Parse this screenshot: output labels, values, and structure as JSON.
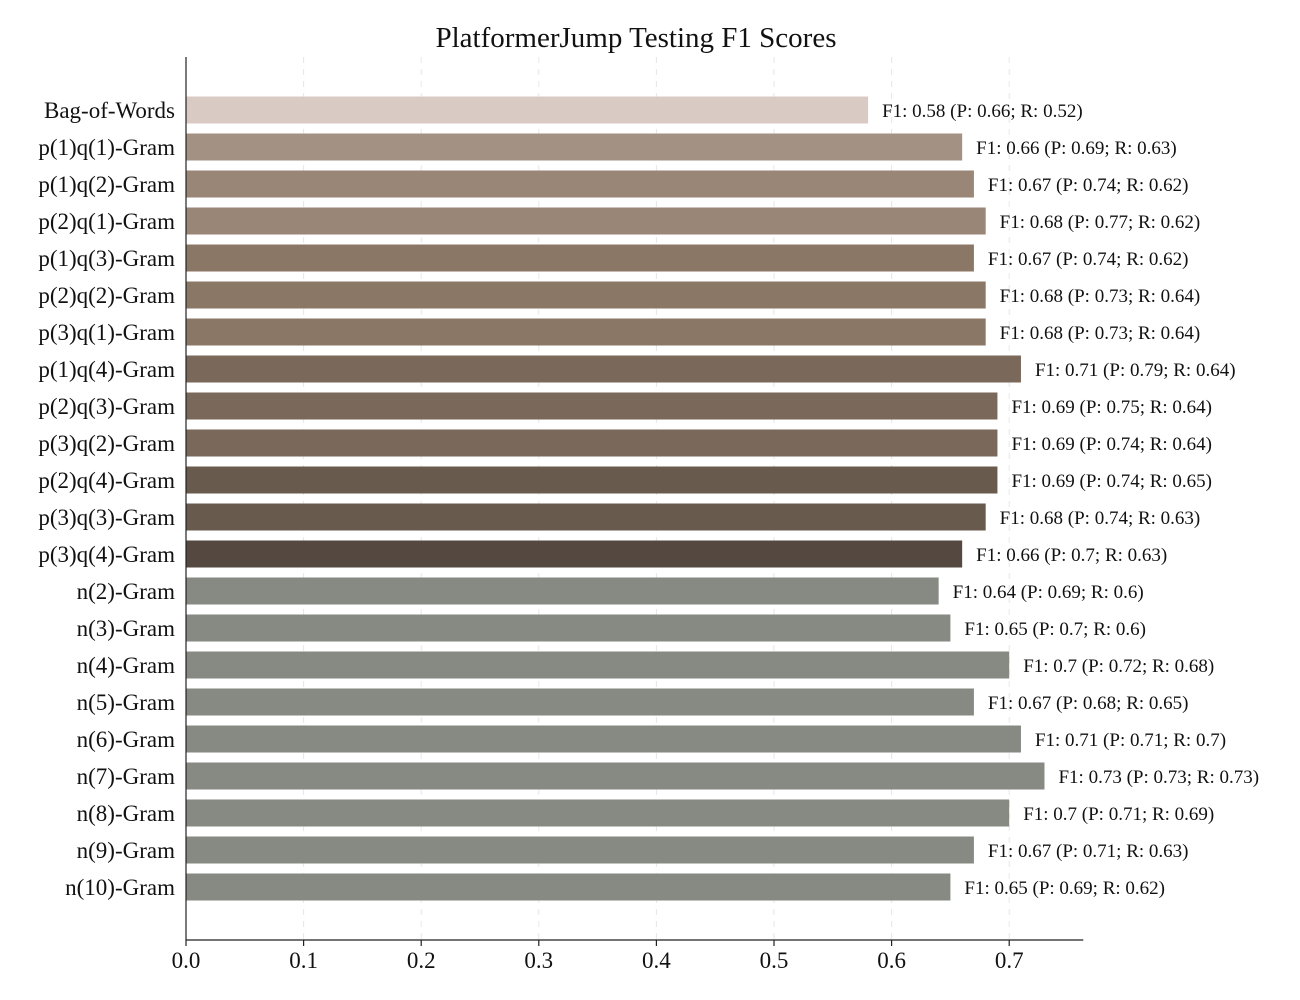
{
  "chart_data": {
    "type": "bar",
    "orientation": "horizontal",
    "title": "PlatformerJump Testing F1 Scores",
    "xlabel": "",
    "ylabel": "",
    "xlim": [
      0,
      0.763
    ],
    "xticks": [
      "0.0",
      "0.1",
      "0.2",
      "0.3",
      "0.4",
      "0.5",
      "0.6",
      "0.7"
    ],
    "grid": "vertical dashed",
    "categories": [
      "Bag-of-Words",
      "p(1)q(1)-Gram",
      "p(1)q(2)-Gram",
      "p(2)q(1)-Gram",
      "p(1)q(3)-Gram",
      "p(2)q(2)-Gram",
      "p(3)q(1)-Gram",
      "p(1)q(4)-Gram",
      "p(2)q(3)-Gram",
      "p(3)q(2)-Gram",
      "p(2)q(4)-Gram",
      "p(3)q(3)-Gram",
      "p(3)q(4)-Gram",
      "n(2)-Gram",
      "n(3)-Gram",
      "n(4)-Gram",
      "n(5)-Gram",
      "n(6)-Gram",
      "n(7)-Gram",
      "n(8)-Gram",
      "n(9)-Gram",
      "n(10)-Gram"
    ],
    "values": [
      0.58,
      0.66,
      0.67,
      0.68,
      0.67,
      0.68,
      0.68,
      0.71,
      0.69,
      0.69,
      0.69,
      0.68,
      0.66,
      0.64,
      0.65,
      0.7,
      0.67,
      0.71,
      0.73,
      0.7,
      0.67,
      0.65
    ],
    "bar_labels": [
      "F1: 0.58 (P: 0.66; R: 0.52)",
      "F1: 0.66 (P: 0.69; R: 0.63)",
      "F1: 0.67 (P: 0.74; R: 0.62)",
      "F1: 0.68 (P: 0.77; R: 0.62)",
      "F1: 0.67 (P: 0.74; R: 0.62)",
      "F1: 0.68 (P: 0.73; R: 0.64)",
      "F1: 0.68 (P: 0.73; R: 0.64)",
      "F1: 0.71 (P: 0.79; R: 0.64)",
      "F1: 0.69 (P: 0.75; R: 0.64)",
      "F1: 0.69 (P: 0.74; R: 0.64)",
      "F1: 0.69 (P: 0.74; R: 0.65)",
      "F1: 0.68 (P: 0.74; R: 0.63)",
      "F1: 0.66 (P: 0.7; R: 0.63)",
      "F1: 0.64 (P: 0.69; R: 0.6)",
      "F1: 0.65 (P: 0.7; R: 0.6)",
      "F1: 0.7 (P: 0.72; R: 0.68)",
      "F1: 0.67 (P: 0.68; R: 0.65)",
      "F1: 0.71 (P: 0.71; R: 0.7)",
      "F1: 0.73 (P: 0.73; R: 0.73)",
      "F1: 0.7 (P: 0.71; R: 0.69)",
      "F1: 0.67 (P: 0.71; R: 0.63)",
      "F1: 0.65 (P: 0.69; R: 0.62)"
    ],
    "colors": [
      "#d9cbc3",
      "#a39283",
      "#9a8677",
      "#9a8677",
      "#8b7766",
      "#8b7766",
      "#8b7766",
      "#7a685a",
      "#7a685a",
      "#7a685a",
      "#695a4e",
      "#695a4e",
      "#544840",
      "#868a82",
      "#868a82",
      "#868a82",
      "#868a82",
      "#868a82",
      "#868a82",
      "#868a82",
      "#868a82",
      "#868a82"
    ]
  }
}
